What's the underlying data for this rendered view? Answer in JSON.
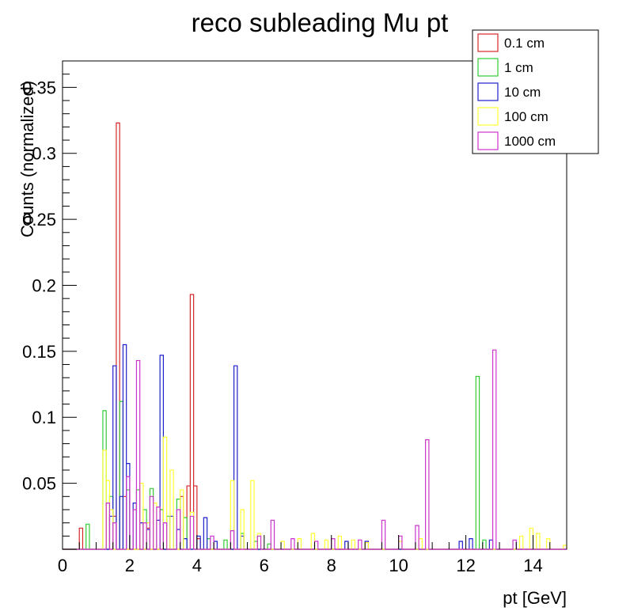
{
  "chart_data": {
    "type": "histogram-step",
    "title": "reco subleading Mu pt",
    "xlabel": "pt [GeV]",
    "ylabel": "Counts (normalized)",
    "xlim": [
      0,
      15
    ],
    "ylim": [
      0,
      0.37
    ],
    "bin_width": 0.1,
    "x_ticks": [
      0,
      2,
      4,
      6,
      8,
      10,
      12,
      14
    ],
    "x_tick_labels": [
      "0",
      "2",
      "4",
      "6",
      "8",
      "10",
      "12",
      "14"
    ],
    "y_ticks": [
      0.05,
      0.1,
      0.15,
      0.2,
      0.25,
      0.3,
      0.35
    ],
    "y_tick_labels": [
      "0.05",
      "0.1",
      "0.15",
      "0.2",
      "0.25",
      "0.3",
      "0.35"
    ],
    "legend_position": "top-right",
    "series": [
      {
        "name": "0.1 cm",
        "color": "#d62728",
        "bins": [
          [
            0.5,
            0.016
          ],
          [
            1.5,
            0.025
          ],
          [
            1.6,
            0.323
          ],
          [
            1.8,
            0.04
          ],
          [
            2.5,
            0.016
          ],
          [
            3.5,
            0.04
          ],
          [
            3.7,
            0.048
          ],
          [
            3.8,
            0.193
          ],
          [
            3.9,
            0.048
          ],
          [
            4.0,
            0.008
          ]
        ]
      },
      {
        "name": "1 cm",
        "color": "#33cc33",
        "bins": [
          [
            0.7,
            0.019
          ],
          [
            1.2,
            0.105
          ],
          [
            1.4,
            0.04
          ],
          [
            1.7,
            0.112
          ],
          [
            1.9,
            0.045
          ],
          [
            2.2,
            0.045
          ],
          [
            2.4,
            0.03
          ],
          [
            2.6,
            0.046
          ],
          [
            2.9,
            0.03
          ],
          [
            3.1,
            0.025
          ],
          [
            3.4,
            0.038
          ],
          [
            3.6,
            0.024
          ],
          [
            4.3,
            0.008
          ],
          [
            4.8,
            0.007
          ],
          [
            5.3,
            0.012
          ],
          [
            5.7,
            0.006
          ],
          [
            6.1,
            0.004
          ],
          [
            12.3,
            0.131
          ],
          [
            12.5,
            0.007
          ]
        ]
      },
      {
        "name": "10 cm",
        "color": "#1f1fcc",
        "bins": [
          [
            1.4,
            0.025
          ],
          [
            1.5,
            0.139
          ],
          [
            1.7,
            0.04
          ],
          [
            1.8,
            0.155
          ],
          [
            1.9,
            0.065
          ],
          [
            2.1,
            0.035
          ],
          [
            2.3,
            0.02
          ],
          [
            2.5,
            0.015
          ],
          [
            2.8,
            0.022
          ],
          [
            2.9,
            0.147
          ],
          [
            3.2,
            0.025
          ],
          [
            3.4,
            0.015
          ],
          [
            3.6,
            0.008
          ],
          [
            4.0,
            0.01
          ],
          [
            4.2,
            0.024
          ],
          [
            4.5,
            0.006
          ],
          [
            5.1,
            0.139
          ],
          [
            5.3,
            0.01
          ],
          [
            8.4,
            0.006
          ],
          [
            9.0,
            0.006
          ],
          [
            11.8,
            0.006
          ],
          [
            12.1,
            0.008
          ],
          [
            12.7,
            0.007
          ]
        ]
      },
      {
        "name": "100 cm",
        "color": "#ffff33",
        "bins": [
          [
            1.2,
            0.075
          ],
          [
            1.3,
            0.052
          ],
          [
            1.4,
            0.03
          ],
          [
            2.3,
            0.05
          ],
          [
            2.5,
            0.02
          ],
          [
            2.7,
            0.035
          ],
          [
            3.0,
            0.085
          ],
          [
            3.2,
            0.06
          ],
          [
            3.5,
            0.045
          ],
          [
            3.8,
            0.028
          ],
          [
            5.0,
            0.052
          ],
          [
            5.3,
            0.03
          ],
          [
            5.6,
            0.052
          ],
          [
            5.8,
            0.012
          ],
          [
            6.5,
            0.006
          ],
          [
            7.0,
            0.008
          ],
          [
            7.4,
            0.012
          ],
          [
            7.8,
            0.007
          ],
          [
            8.2,
            0.01
          ],
          [
            8.6,
            0.007
          ],
          [
            9.0,
            0.005
          ],
          [
            10.0,
            0.006
          ],
          [
            10.6,
            0.008
          ],
          [
            13.6,
            0.01
          ],
          [
            13.9,
            0.016
          ],
          [
            14.1,
            0.012
          ],
          [
            14.4,
            0.008
          ],
          [
            14.9,
            0.003
          ]
        ]
      },
      {
        "name": "1000 cm",
        "color": "#cc33cc",
        "bins": [
          [
            1.3,
            0.035
          ],
          [
            1.5,
            0.02
          ],
          [
            1.9,
            0.055
          ],
          [
            2.1,
            0.03
          ],
          [
            2.2,
            0.143
          ],
          [
            2.4,
            0.02
          ],
          [
            2.6,
            0.04
          ],
          [
            2.8,
            0.032
          ],
          [
            3.0,
            0.02
          ],
          [
            3.4,
            0.03
          ],
          [
            3.8,
            0.025
          ],
          [
            4.4,
            0.01
          ],
          [
            5.0,
            0.014
          ],
          [
            5.8,
            0.01
          ],
          [
            6.2,
            0.022
          ],
          [
            6.8,
            0.008
          ],
          [
            7.5,
            0.006
          ],
          [
            8.0,
            0.008
          ],
          [
            8.8,
            0.007
          ],
          [
            9.5,
            0.022
          ],
          [
            10.0,
            0.01
          ],
          [
            10.5,
            0.018
          ],
          [
            10.8,
            0.083
          ],
          [
            12.8,
            0.151
          ],
          [
            13.4,
            0.007
          ]
        ]
      }
    ]
  }
}
